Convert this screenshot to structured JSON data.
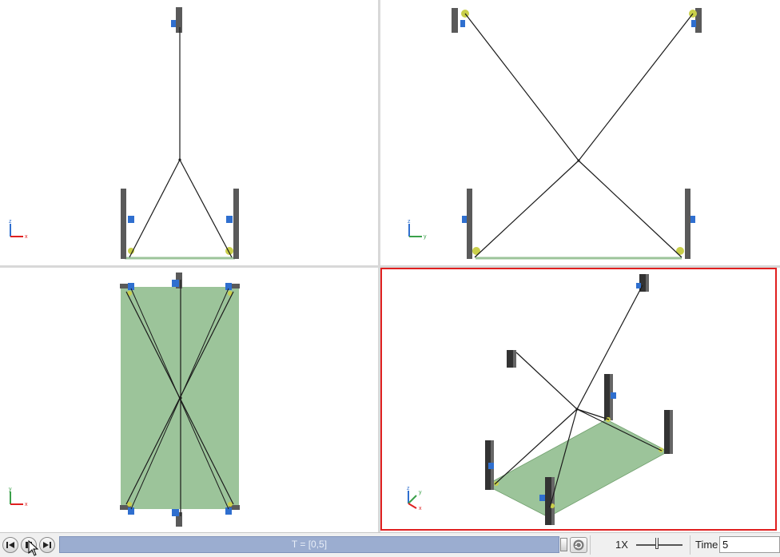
{
  "viewports": [
    {
      "id": "front",
      "axes": {
        "horizontal": "x",
        "vertical": "z"
      },
      "active": false
    },
    {
      "id": "side",
      "axes": {
        "horizontal": "y",
        "vertical": "z"
      },
      "active": false
    },
    {
      "id": "top",
      "axes": {
        "horizontal": "x",
        "vertical": "y"
      },
      "active": false
    },
    {
      "id": "isometric",
      "axes": {
        "x": "x",
        "y": "y",
        "z": "z"
      },
      "active": true
    }
  ],
  "colors": {
    "platform": "#9cc49a",
    "pillar": "#5a5a5a",
    "winch": "#2f6fcf",
    "pulley": "#c9cf4a",
    "cable": "#1a1a1a",
    "active_border": "#e02020",
    "timeline": "#9badd0"
  },
  "playback": {
    "rewind_icon": "step-back-icon",
    "pause_icon": "pause-icon",
    "forward_icon": "step-forward-icon",
    "timeline_label": "T = [0,5]",
    "loop_icon": "loop-icon",
    "speed_label": "1X",
    "time_label": "Time",
    "time_value": "5"
  }
}
